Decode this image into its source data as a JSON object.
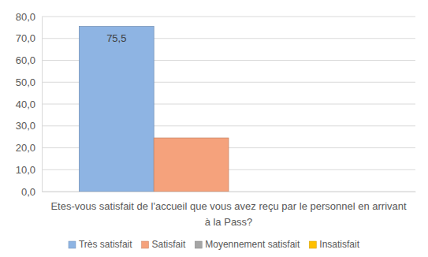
{
  "chart_data": {
    "type": "bar",
    "categories": [
      "Etes-vous satisfait de l'accueil que vous avez reçu par le personnel en arrivant à la Pass?"
    ],
    "series": [
      {
        "name": "Très satisfait",
        "color": "#8eb4e3",
        "values": [
          75.5
        ],
        "value_labels": [
          "75,5"
        ]
      },
      {
        "name": "Satisfait",
        "color": "#f5a27c",
        "values": [
          24.5
        ]
      },
      {
        "name": "Moyennement satisfait",
        "color": "#a5a5a5",
        "values": [
          0
        ]
      },
      {
        "name": "Insatisfait",
        "color": "#ffc000",
        "values": [
          0
        ]
      }
    ],
    "ylim": [
      0,
      80
    ],
    "yticks": [
      {
        "value": 0,
        "label": "0,0"
      },
      {
        "value": 10,
        "label": "10,0"
      },
      {
        "value": 20,
        "label": "20,0"
      },
      {
        "value": 30,
        "label": "30,0"
      },
      {
        "value": 40,
        "label": "40,0"
      },
      {
        "value": 50,
        "label": "50,0"
      },
      {
        "value": 60,
        "label": "60,0"
      },
      {
        "value": 70,
        "label": "70,0"
      },
      {
        "value": 80,
        "label": "80,0"
      }
    ],
    "grid": true,
    "legend": "bottom"
  }
}
